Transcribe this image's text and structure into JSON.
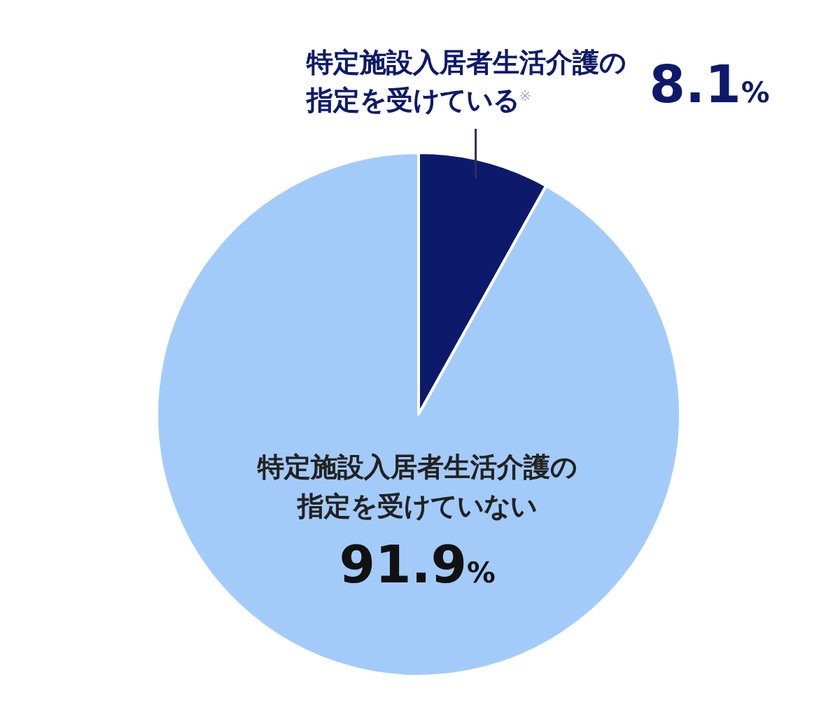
{
  "chart_data": {
    "type": "pie",
    "categories": [
      "特定施設入居者生活介護の指定を受けている$^{※}$",
      "特定施設入居者生活介護の指定を受けていない"
    ],
    "values": [
      8.1,
      91.9
    ],
    "colors": [
      "#0d1a6c",
      "#a3cbfa"
    ],
    "value_labels": [
      "8.1%",
      "91.9%"
    ]
  }
}
